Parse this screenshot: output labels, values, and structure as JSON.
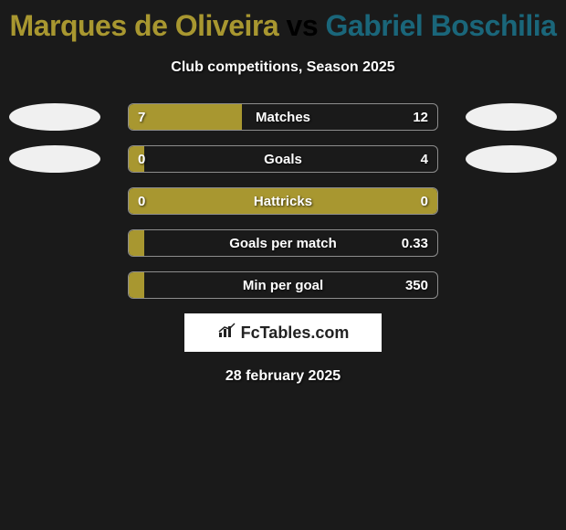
{
  "title": {
    "player1": "Marques de Oliveira",
    "vs": " vs ",
    "player2": "Gabriel Boschilia",
    "player1_color": "#a89730",
    "player2_color": "#1a667a",
    "fontsize": 32
  },
  "subtitle": "Club competitions, Season 2025",
  "background_color": "#1a1a1a",
  "bar_fill_color": "#a89730",
  "bar_border_color": "rgba(255,255,255,0.5)",
  "text_color": "#ffffff",
  "ellipse_color": "#f0f0f0",
  "rows": [
    {
      "label": "Matches",
      "left_value": "7",
      "right_value": "12",
      "fill_percent": 36.8,
      "show_left_ellipse": true,
      "show_right_ellipse": true
    },
    {
      "label": "Goals",
      "left_value": "0",
      "right_value": "4",
      "fill_percent": 5,
      "show_left_ellipse": true,
      "show_right_ellipse": true
    },
    {
      "label": "Hattricks",
      "left_value": "0",
      "right_value": "0",
      "fill_percent": 100,
      "show_left_ellipse": false,
      "show_right_ellipse": false
    },
    {
      "label": "Goals per match",
      "left_value": "",
      "right_value": "0.33",
      "fill_percent": 5,
      "show_left_ellipse": false,
      "show_right_ellipse": false
    },
    {
      "label": "Min per goal",
      "left_value": "",
      "right_value": "350",
      "fill_percent": 5,
      "show_left_ellipse": false,
      "show_right_ellipse": false
    }
  ],
  "logo": {
    "text": "FcTables.com",
    "background": "#ffffff",
    "text_color": "#222222"
  },
  "date": "28 february 2025"
}
